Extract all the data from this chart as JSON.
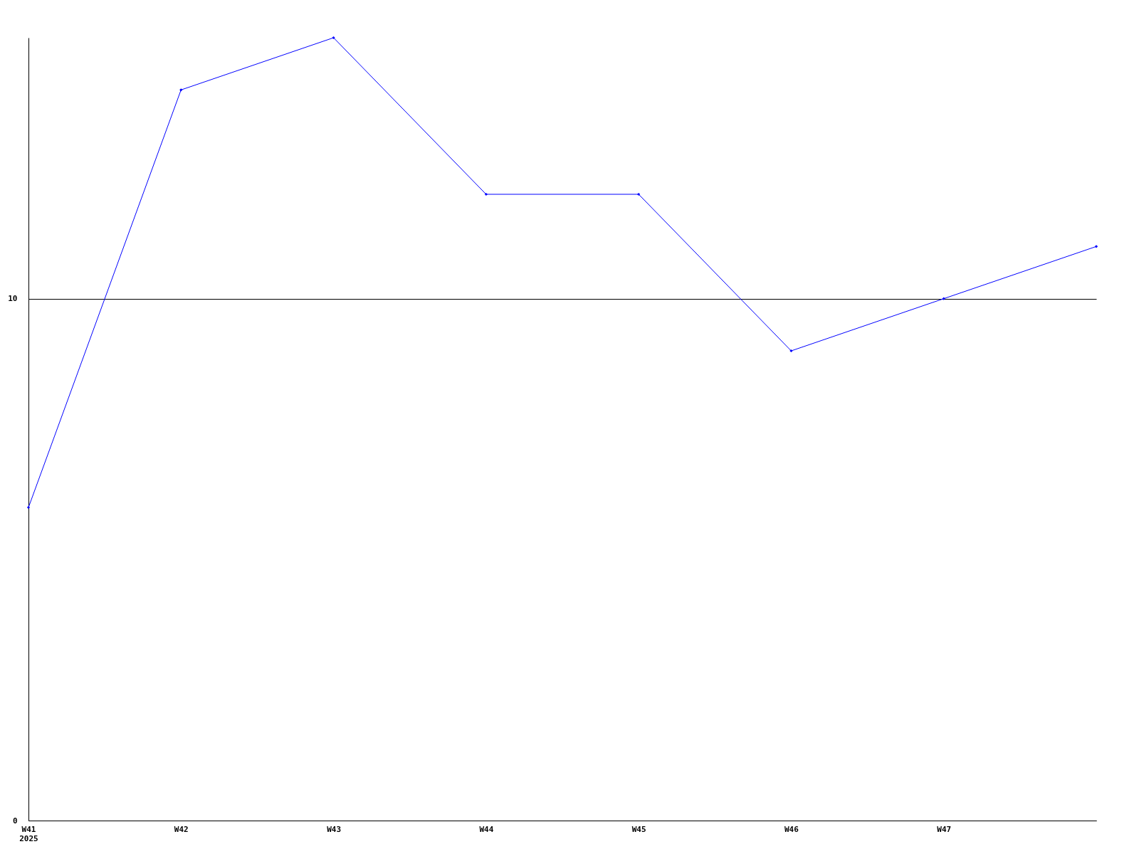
{
  "chart_data": {
    "type": "line",
    "categories": [
      "W41\n2025",
      "W42",
      "W43",
      "W44",
      "W45",
      "W46",
      "W47",
      null
    ],
    "series": [
      {
        "color": "#0000ff",
        "values": [
          6,
          14,
          15,
          12,
          12,
          9,
          10,
          11
        ]
      }
    ],
    "ylim": [
      0,
      15
    ],
    "yticks": [
      0,
      10
    ],
    "grid": "y",
    "marker": "diamond",
    "line_style": "solid",
    "legend": false
  }
}
